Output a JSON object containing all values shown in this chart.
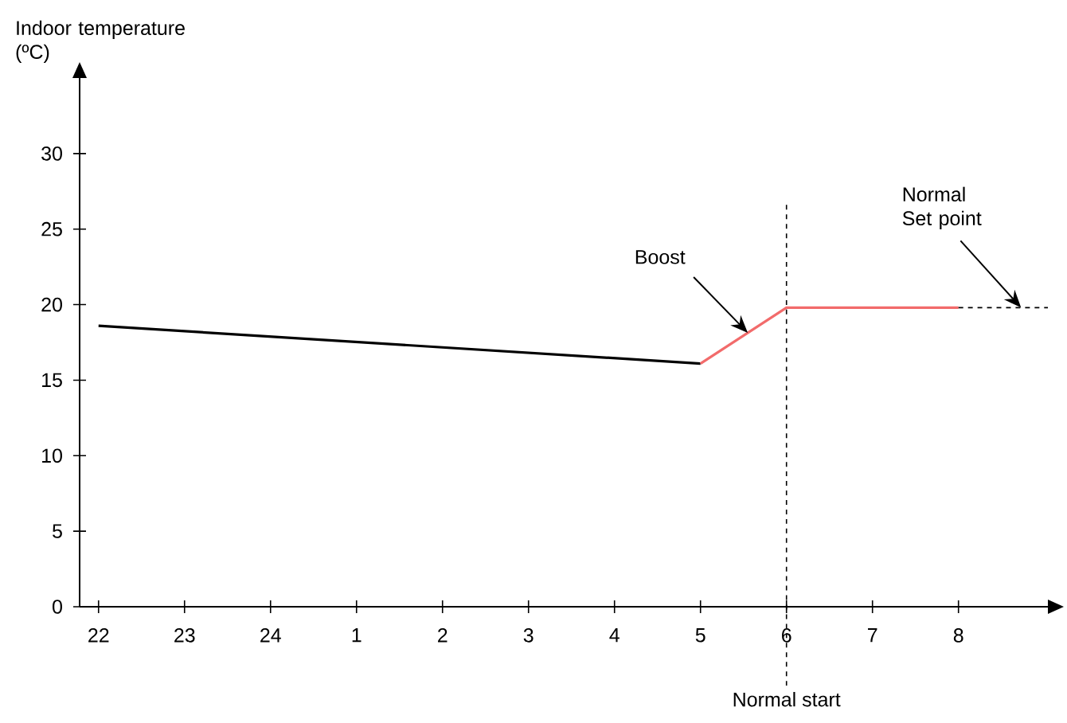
{
  "chart_data": {
    "type": "line",
    "ylabel": "Indoor temperature (ºC)",
    "categories": [
      "22",
      "23",
      "24",
      "1",
      "2",
      "3",
      "4",
      "5",
      "6",
      "7",
      "8"
    ],
    "ylim": [
      0,
      35
    ],
    "yticks": [
      0,
      5,
      10,
      15,
      20,
      25,
      30
    ],
    "series": [
      {
        "color": "#000000",
        "x": [
          "22",
          "5"
        ],
        "values": [
          18.6,
          16.1
        ]
      },
      {
        "name": "Boost",
        "color": "#f26b6b",
        "x": [
          "5",
          "6",
          "8"
        ],
        "values": [
          16.1,
          19.8,
          19.8
        ]
      }
    ],
    "ref_lines": [
      {
        "axis": "x",
        "value": "6",
        "label": "Normal start",
        "line_style": "dashed",
        "color": "#000000"
      },
      {
        "axis": "y",
        "value": 19.8,
        "label": "Normal Set point",
        "line_style": "dashed",
        "color": "#000000"
      }
    ],
    "grid": false,
    "marker": "none",
    "line_style": "solid"
  }
}
